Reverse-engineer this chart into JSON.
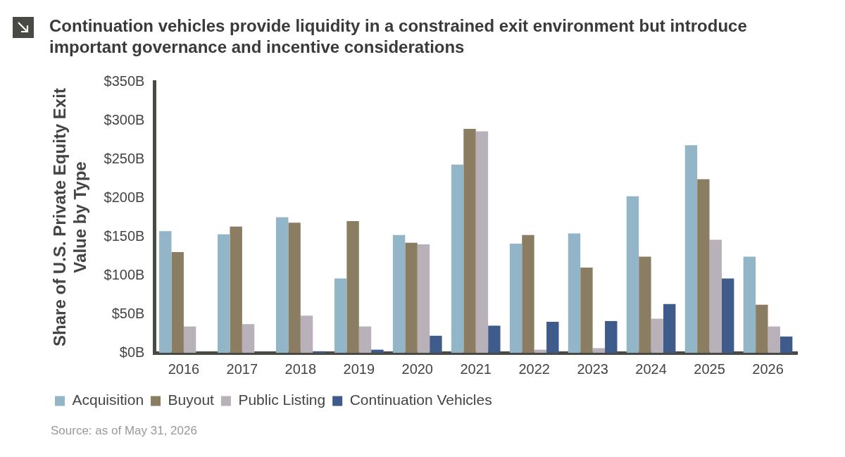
{
  "chart_data": {
    "type": "bar",
    "title": "Continuation vehicles provide liquidity in a constrained exit environment but introduce important governance and incentive considerations",
    "ylabel": "Share of U.S. Private Equity Exit Value by Type",
    "categories": [
      "2016",
      "2017",
      "2018",
      "2019",
      "2020",
      "2021",
      "2022",
      "2023",
      "2024",
      "2025",
      "2026"
    ],
    "series": [
      {
        "name": "Acquisition",
        "color": "#93b5c8",
        "values": [
          157,
          153,
          175,
          96,
          152,
          243,
          141,
          154,
          202,
          268,
          124
        ]
      },
      {
        "name": "Buyout",
        "color": "#8b7d62",
        "values": [
          130,
          163,
          168,
          170,
          142,
          289,
          152,
          110,
          124,
          224,
          62
        ]
      },
      {
        "name": "Public Listing",
        "color": "#b9b1ba",
        "values": [
          34,
          37,
          48,
          34,
          140,
          286,
          4,
          6,
          44,
          146,
          34
        ]
      },
      {
        "name": "Continuation Vehicles",
        "color": "#3f5b8c",
        "values": [
          0,
          0,
          2,
          4,
          22,
          35,
          40,
          41,
          63,
          96,
          21
        ]
      }
    ],
    "ylim": [
      0,
      350
    ],
    "yticks": [
      {
        "value": 0,
        "label": "$0B"
      },
      {
        "value": 50,
        "label": "$50B"
      },
      {
        "value": 100,
        "label": "$100B"
      },
      {
        "value": 150,
        "label": "$150B"
      },
      {
        "value": 200,
        "label": "$200B"
      },
      {
        "value": 250,
        "label": "$250B"
      },
      {
        "value": 300,
        "label": "$300B"
      },
      {
        "value": 350,
        "label": "$350B"
      }
    ],
    "grid": false,
    "legend": "bottom",
    "annotations": [
      "Source: as of May 31, 2026"
    ]
  }
}
